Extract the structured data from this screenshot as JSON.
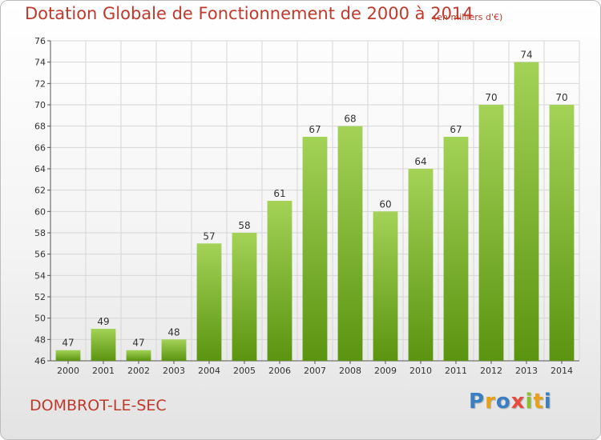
{
  "title": "Dotation Globale de Fonctionnement de 2000 à 2014",
  "subtitle": "(en milliers d'€)",
  "commune": "DOMBROT-LE-SEC",
  "brand": {
    "text": "Proxiti",
    "letter_colors": [
      "#3a7fc1",
      "#e8a016",
      "#3a7fc1",
      "#e84a3c",
      "#8cbf2c",
      "#e8a016",
      "#3a7fc1"
    ]
  },
  "colors": {
    "bar_light": "#a3d257",
    "bar_dark": "#5b9410",
    "title": "#c0392b",
    "grid": "#d6d6d6",
    "axis": "#555555"
  },
  "chart_data": {
    "type": "bar",
    "title": "Dotation Globale de Fonctionnement de 2000 à 2014",
    "subtitle": "(en milliers d'€)",
    "categories": [
      "2000",
      "2001",
      "2002",
      "2003",
      "2004",
      "2005",
      "2006",
      "2007",
      "2008",
      "2009",
      "2010",
      "2011",
      "2012",
      "2013",
      "2014"
    ],
    "values": [
      47,
      49,
      47,
      48,
      57,
      58,
      61,
      67,
      68,
      60,
      64,
      67,
      70,
      74,
      70
    ],
    "ylim": [
      46,
      76
    ],
    "yticks": [
      46,
      48,
      50,
      52,
      54,
      56,
      58,
      60,
      62,
      64,
      66,
      68,
      70,
      72,
      74,
      76
    ],
    "grid": true,
    "xlabel": "",
    "ylabel": ""
  }
}
